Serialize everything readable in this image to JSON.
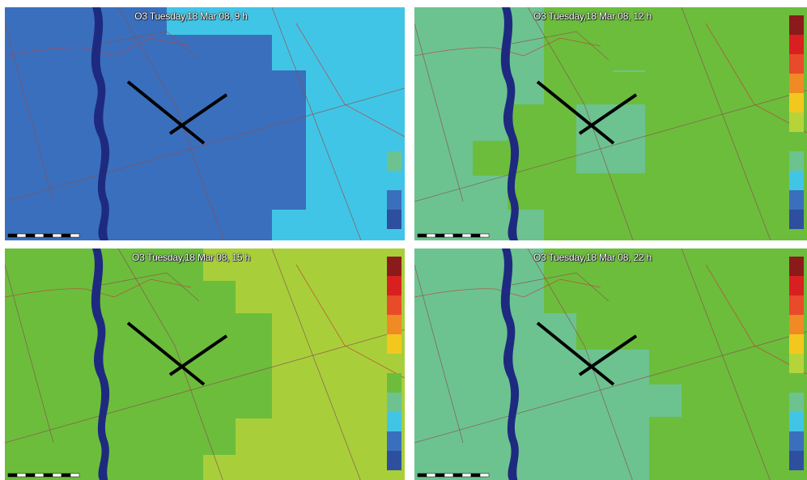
{
  "panels": [
    {
      "title": "O3 Tuesday,18 Mar 08, 9 h",
      "base_color": "#3a6fbd",
      "highlight_color": "#41c5e6",
      "highlight_top_strip": "#6dc9a8",
      "legend_visible": [
        false,
        false,
        false,
        false,
        false,
        false,
        false,
        true,
        true,
        true,
        true
      ]
    },
    {
      "title": "O3 Tuesday,18 Mar 08, 12 h",
      "base_color": "#6cc390",
      "highlight_color": "#6cbd3c",
      "legend_visible": [
        true,
        true,
        true,
        true,
        true,
        true,
        true,
        true,
        true,
        true,
        true
      ]
    },
    {
      "title": "O3 Tuesday,18 Mar 08, 15 h",
      "base_color": "#6cbd3c",
      "highlight_color": "#a8cf3a",
      "legend_visible": [
        true,
        true,
        true,
        true,
        true,
        false,
        true,
        true,
        true,
        true,
        true
      ]
    },
    {
      "title": "O3 Tuesday,18 Mar 08, 22 h",
      "base_color": "#6cc390",
      "highlight_color": "#6cbd3c",
      "legend_visible": [
        true,
        true,
        true,
        true,
        true,
        true,
        true,
        true,
        true,
        true,
        true
      ]
    }
  ],
  "legend_colors": [
    "#8b1a1a",
    "#d92020",
    "#e84b2a",
    "#f08a24",
    "#f2c81e",
    "#b7d33a",
    "#6cbd3c",
    "#6cc390",
    "#41c5e6",
    "#3a6fbd",
    "#2d4f9e"
  ],
  "colors": {
    "river": "#1e2a80",
    "road_red": "#c0403a",
    "road_brown": "#8a5050",
    "cross": "#000000"
  },
  "icons": [
    "cross-marker-icon",
    "scale-bar-icon",
    "color-legend-icon"
  ]
}
